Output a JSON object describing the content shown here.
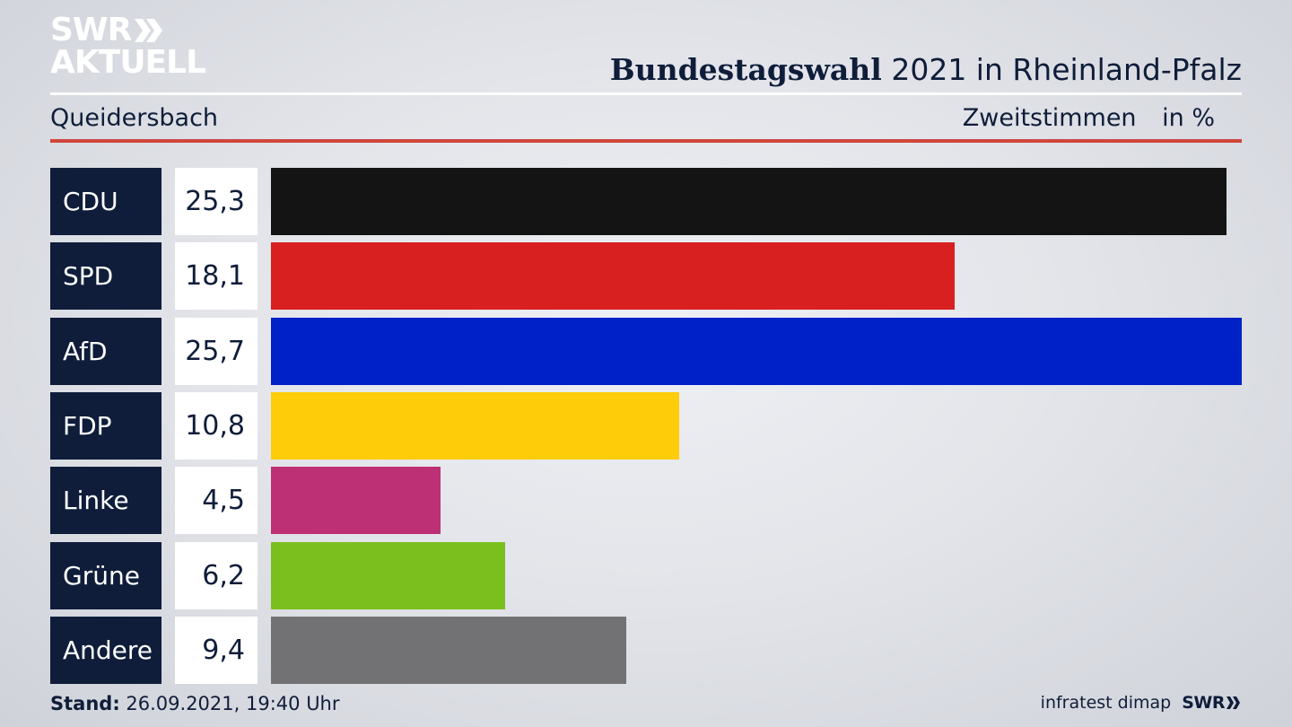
{
  "logo": {
    "line1": "SWR",
    "line2": "AKTUELL"
  },
  "header": {
    "title_bold": "Bundestagswahl",
    "title_rest": "2021 in Rheinland-Pfalz",
    "location": "Queidersbach",
    "vote_type": "Zweitstimmen",
    "unit": "in %"
  },
  "chart_data": {
    "type": "bar",
    "orientation": "horizontal",
    "title": "Bundestagswahl 2021 in Rheinland-Pfalz",
    "subtitle": "Queidersbach",
    "categories": [
      "CDU",
      "SPD",
      "AfD",
      "FDP",
      "Linke",
      "Grüne",
      "Andere"
    ],
    "values": [
      25.3,
      18.1,
      25.7,
      10.8,
      4.5,
      6.2,
      9.4
    ],
    "value_labels": [
      "25,3",
      "18,1",
      "25,7",
      "10,8",
      "4,5",
      "6,2",
      "9,4"
    ],
    "colors": [
      "#141414",
      "#d92020",
      "#0021c7",
      "#ffcc0a",
      "#be3075",
      "#7bbf1e",
      "#727274"
    ],
    "xlim": [
      0,
      25.7
    ],
    "grid": false
  },
  "footer": {
    "stand_label": "Stand:",
    "stand_value": "26.09.2021, 19:40 Uhr",
    "source": "infratest dimap",
    "broadcaster": "SWR"
  }
}
